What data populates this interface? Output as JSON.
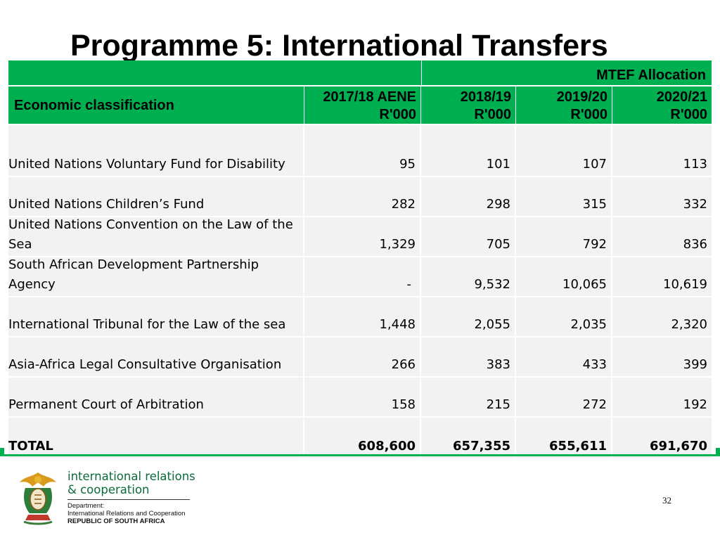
{
  "title": "Programme 5: International Transfers",
  "header": {
    "mtef_label": "MTEF Allocation",
    "classification_label": "Economic classification",
    "columns": [
      {
        "line1": "2017/18 AENE",
        "line2": "R'000"
      },
      {
        "line1": "2018/19",
        "line2": "R'000"
      },
      {
        "line1": "2019/20",
        "line2": "R'000"
      },
      {
        "line1": "2020/21",
        "line2": "R'000"
      }
    ]
  },
  "rows": [
    {
      "name": "United Nations Voluntary Fund for Disability",
      "values": [
        "95",
        "101",
        "107",
        "113"
      ]
    },
    {
      "name": "United Nations Children’s Fund",
      "values": [
        "282",
        "298",
        "315",
        "332"
      ]
    },
    {
      "name_line1": "United Nations Convention on the Law of the",
      "name_line2": "Sea",
      "values": [
        "1,329",
        "705",
        "792",
        "836"
      ]
    },
    {
      "name_line1": "South African Development Partnership",
      "name_line2": "Agency",
      "values": [
        "-",
        "9,532",
        "10,065",
        "10,619"
      ]
    },
    {
      "name": "International Tribunal for the Law of the sea",
      "values": [
        "1,448",
        "2,055",
        "2,035",
        "2,320"
      ]
    },
    {
      "name": "Asia-Africa Legal Consultative Organisation",
      "values": [
        "266",
        "383",
        "433",
        "399"
      ]
    },
    {
      "name": "Permanent Court of Arbitration",
      "values": [
        "158",
        "215",
        "272",
        "192"
      ]
    }
  ],
  "total": {
    "name": "TOTAL",
    "values": [
      "608,600",
      "657,355",
      "655,611",
      "691,670"
    ]
  },
  "footer": {
    "dept_line1": "international relations",
    "dept_line2": "& cooperation",
    "dept_small1": "Department:",
    "dept_small2": "International Relations and Cooperation",
    "dept_small3": "REPUBLIC OF SOUTH AFRICA",
    "page_number": "32"
  },
  "colors": {
    "accent_green": "#00b050",
    "row_fill": "#f2f2f2",
    "logo_text": "#0b6b3a"
  }
}
